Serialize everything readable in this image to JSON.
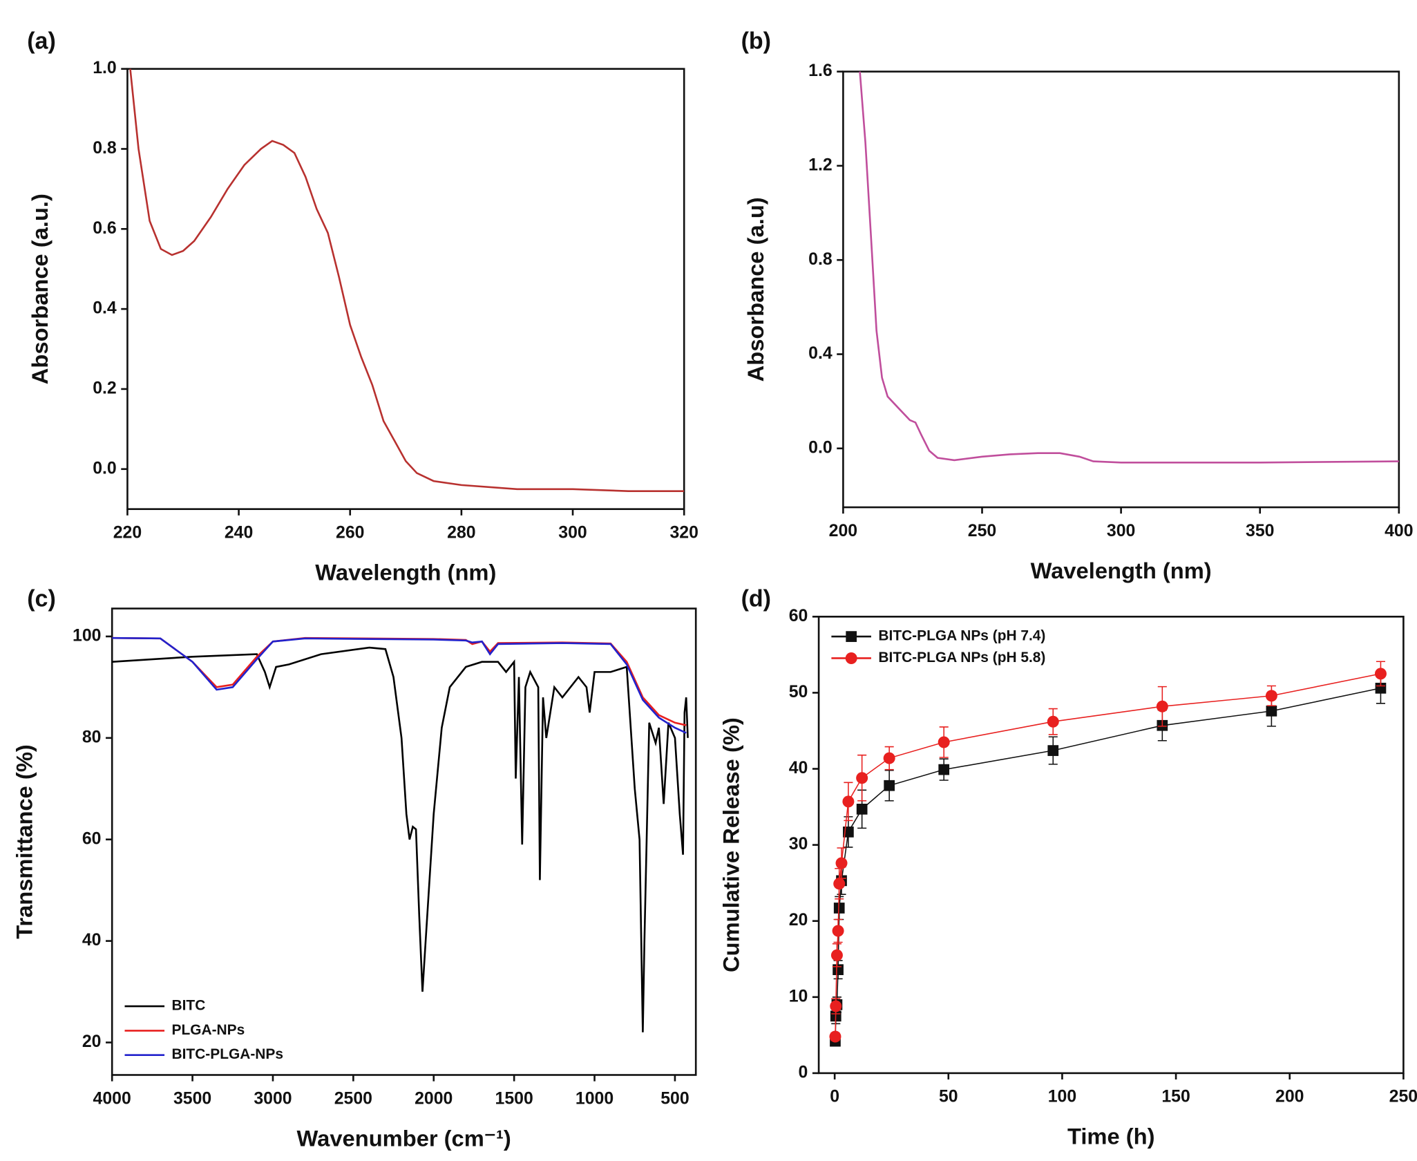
{
  "chart_data": [
    {
      "type": "line",
      "label": "(a)",
      "x_label": "Wavelength (nm)",
      "y_label": "Absorbance (a.u.)",
      "xlim": [
        220,
        320
      ],
      "ylim": [
        -0.1,
        1.0
      ],
      "xticks": [
        220,
        240,
        260,
        280,
        300,
        320
      ],
      "yticks": [
        {
          "value": 0,
          "label": "0.0"
        },
        0.2,
        0.4,
        0.6,
        0.8,
        {
          "value": 1,
          "label": "1.0"
        }
      ],
      "grid": false,
      "series": [
        {
          "color": "#b8312f",
          "x": [
            220.5,
            222,
            224,
            226,
            228,
            230,
            232,
            235,
            238,
            241,
            244,
            246,
            248,
            250,
            252,
            254,
            256,
            258,
            260,
            262,
            264,
            266,
            268,
            270,
            272,
            275,
            280,
            290,
            300,
            310,
            320
          ],
          "y": [
            1.0,
            0.8,
            0.62,
            0.55,
            0.535,
            0.545,
            0.57,
            0.63,
            0.7,
            0.76,
            0.8,
            0.82,
            0.81,
            0.79,
            0.73,
            0.65,
            0.59,
            0.48,
            0.36,
            0.28,
            0.21,
            0.12,
            0.07,
            0.02,
            -0.01,
            -0.03,
            -0.04,
            -0.05,
            -0.05,
            -0.055,
            -0.055
          ]
        }
      ]
    },
    {
      "type": "line",
      "label": "(b)",
      "x_label": "Wavelength (nm)",
      "y_label": "Absorbance (a.u)",
      "xlim": [
        200,
        400
      ],
      "ylim": [
        -0.25,
        1.6
      ],
      "xticks": [
        200,
        250,
        300,
        350,
        400
      ],
      "yticks": [
        {
          "value": 0,
          "label": "0.0"
        },
        0.4,
        0.8,
        1.2,
        1.6
      ],
      "grid": false,
      "series": [
        {
          "color": "#c04e9c",
          "x": [
            206,
            208,
            210,
            212,
            214,
            216,
            220,
            224,
            226,
            228,
            231,
            234,
            240,
            250,
            260,
            270,
            278,
            285,
            290,
            300,
            350,
            400
          ],
          "y": [
            1.6,
            1.3,
            0.9,
            0.5,
            0.3,
            0.22,
            0.17,
            0.12,
            0.11,
            0.06,
            -0.01,
            -0.04,
            -0.05,
            -0.035,
            -0.025,
            -0.02,
            -0.02,
            -0.035,
            -0.055,
            -0.06,
            -0.06,
            -0.055
          ]
        }
      ]
    },
    {
      "type": "line",
      "label": "(c)",
      "x_label": "Wavenumber (cm⁻¹)",
      "y_label": "Transmittance (%)",
      "xlim": [
        4000,
        370
      ],
      "ylim": [
        13.6,
        105.5
      ],
      "xticks": [
        4000,
        3500,
        3000,
        2500,
        2000,
        1500,
        1000,
        500
      ],
      "yticks": [
        20,
        40,
        60,
        80,
        100
      ],
      "grid": false,
      "legend": "lower left",
      "series": [
        {
          "name": "BITC",
          "color": "#000000",
          "x": [
            4000,
            3500,
            3100,
            3050,
            3020,
            2980,
            2900,
            2700,
            2400,
            2300,
            2250,
            2200,
            2170,
            2150,
            2130,
            2110,
            2090,
            2070,
            2050,
            2000,
            1950,
            1900,
            1800,
            1700,
            1600,
            1550,
            1500,
            1490,
            1470,
            1450,
            1430,
            1400,
            1350,
            1340,
            1320,
            1300,
            1250,
            1200,
            1100,
            1050,
            1030,
            1000,
            900,
            800,
            750,
            720,
            700,
            690,
            660,
            620,
            600,
            570,
            540,
            500,
            470,
            450,
            440,
            430,
            420
          ],
          "y": [
            95,
            96,
            96.5,
            93,
            90,
            94,
            94.5,
            96.5,
            97.8,
            97.5,
            92,
            80,
            65,
            60,
            62.5,
            62,
            45,
            30,
            40,
            65,
            82,
            90,
            94,
            95,
            95,
            93,
            95,
            72,
            92,
            59,
            90,
            93,
            90,
            52,
            88,
            80,
            90,
            88,
            92,
            90,
            85,
            93,
            93,
            94,
            70,
            60,
            22,
            40,
            83,
            79,
            82,
            67,
            83,
            80,
            65,
            57,
            85,
            88,
            80
          ]
        },
        {
          "name": "PLGA-NPs",
          "color": "#e8201f",
          "x": [
            4000,
            3700,
            3500,
            3350,
            3250,
            3100,
            3000,
            2800,
            2000,
            1800,
            1760,
            1700,
            1650,
            1600,
            1200,
            900,
            800,
            700,
            600,
            500,
            430
          ],
          "y": [
            99.7,
            99.6,
            95,
            90,
            90.5,
            96,
            99,
            99.7,
            99.5,
            99.3,
            98.5,
            99,
            97,
            98.7,
            98.8,
            98.6,
            95,
            88,
            84.5,
            83,
            82.5
          ]
        },
        {
          "name": "BITC-PLGA-NPs",
          "color": "#2222cc",
          "x": [
            4000,
            3700,
            3500,
            3350,
            3250,
            3100,
            3000,
            2800,
            2000,
            1800,
            1760,
            1700,
            1650,
            1600,
            1200,
            900,
            800,
            700,
            600,
            500,
            430
          ],
          "y": [
            99.7,
            99.6,
            95,
            89.5,
            90,
            95.5,
            99,
            99.6,
            99.4,
            99.2,
            98.8,
            99,
            96.5,
            98.5,
            98.7,
            98.5,
            94.5,
            87.5,
            84,
            82,
            81
          ]
        }
      ]
    },
    {
      "type": "scatter",
      "label": "(d)",
      "x_label": "Time (h)",
      "y_label": "Cumulative Release (%)",
      "xlim": [
        -7,
        250
      ],
      "ylim": [
        0,
        60
      ],
      "xticks": [
        0,
        50,
        100,
        150,
        200,
        250
      ],
      "yticks": [
        0,
        10,
        20,
        30,
        40,
        50,
        60
      ],
      "grid": false,
      "legend": "upper left",
      "series": [
        {
          "name": "BITC-PLGA NPs (pH 7.4)",
          "color": "#111111",
          "marker": "square",
          "x": [
            0.25,
            0.5,
            1,
            1.5,
            2,
            3,
            6,
            12,
            24,
            48,
            96,
            144,
            192,
            240
          ],
          "y": [
            4.2,
            7.5,
            9,
            13.6,
            21.7,
            25.3,
            31.7,
            34.7,
            37.8,
            39.9,
            42.4,
            45.7,
            47.6,
            50.6
          ],
          "errors": [
            0.5,
            1,
            1,
            1.2,
            1.5,
            1.8,
            2,
            2.5,
            2,
            1.4,
            1.8,
            2,
            2,
            2
          ]
        },
        {
          "name": "BITC-PLGA NPs (pH 5.8)",
          "color": "#e8201f",
          "marker": "circle",
          "x": [
            0.25,
            0.5,
            1,
            1.5,
            2,
            3,
            6,
            12,
            24,
            48,
            96,
            144,
            192,
            240
          ],
          "y": [
            4.8,
            8.8,
            15.5,
            18.7,
            24.9,
            27.6,
            35.7,
            38.8,
            41.4,
            43.5,
            46.2,
            48.2,
            49.6,
            52.5
          ],
          "errors": [
            0.5,
            1,
            1.5,
            1.5,
            2,
            2,
            2.5,
            3,
            1.5,
            2,
            1.7,
            2.6,
            1.3,
            1.6
          ]
        }
      ]
    }
  ]
}
